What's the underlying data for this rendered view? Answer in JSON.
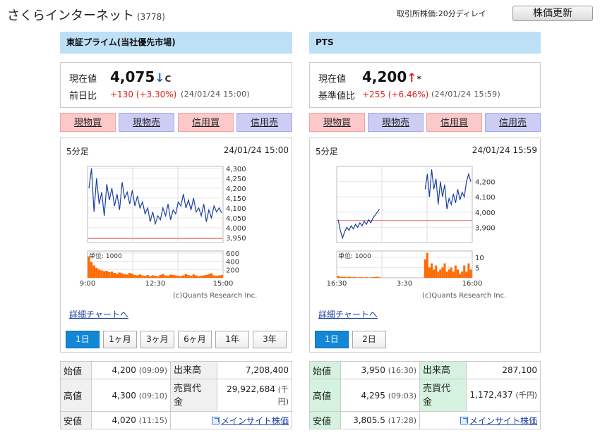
{
  "header": {
    "company_name": "さくらインターネット",
    "code": "(3778)",
    "delay_note": "取引所株価:20分ディレイ",
    "refresh_label": "株価更新"
  },
  "labels": {
    "current": "現在値",
    "prev_change": "前日比",
    "base_change": "基準値比",
    "buy_spot": "現物買",
    "sell_spot": "現物売",
    "buy_margin": "信用買",
    "sell_margin": "信用売",
    "detail_chart": "詳細チャートへ",
    "open": "始値",
    "high": "高値",
    "low": "安値",
    "volume": "出来高",
    "turnover_line1": "売買代",
    "turnover_line2": "金",
    "main_site": "メインサイト株価",
    "unit_thousand_yen": "(千円)"
  },
  "colors": {
    "header_bg": "#bde0f7",
    "up": "#e02020",
    "down_arrow": "#1a5fc8",
    "chart_line": "#1a3f9f",
    "volume": "#ff6a00",
    "base_line": "#ef7070",
    "active_tab": "#1287d8"
  },
  "tse": {
    "market": "東証プライム(当社優先市場)",
    "price": "4,075",
    "arrow": "↓",
    "mark": "C",
    "change": "+130 (+3.30%)",
    "time": "(24/01/24 15:00)",
    "interval": "5分足",
    "chart_datetime": "24/01/24 15:00",
    "tabs": [
      "1日",
      "1ヶ月",
      "3ヶ月",
      "6ヶ月",
      "1年",
      "3年"
    ],
    "open": "4,200",
    "open_time": "(09:09)",
    "high": "4,300",
    "high_time": "(09:10)",
    "low": "4,020",
    "low_time": "(11:15)",
    "volume": "7,208,400",
    "turnover": "29,922,684"
  },
  "pts": {
    "market": "PTS",
    "price": "4,200",
    "arrow": "↑",
    "mark": "*",
    "change": "+255 (+6.46%)",
    "time": "(24/01/24 15:59)",
    "interval": "5分足",
    "chart_datetime": "24/01/24 15:59",
    "tabs": [
      "1日",
      "2日"
    ],
    "open": "3,950",
    "open_time": "(16:30)",
    "high": "4,295",
    "high_time": "(09:03)",
    "low": "3,805.5",
    "low_time": "(17:28)",
    "volume": "287,100",
    "turnover": "1,172,437"
  },
  "chart_data": [
    {
      "type": "line",
      "title": "東証プライム 5分足",
      "x_ticks": [
        "9:00",
        "12:30",
        "15:00"
      ],
      "y_ticks": [
        "3,950",
        "4,000",
        "4,050",
        "4,100",
        "4,150",
        "4,200",
        "4,250",
        "4,300"
      ],
      "ylim": [
        3925,
        4310
      ],
      "base_line": 3945,
      "series": [
        {
          "values": [
            4200,
            4300,
            4080,
            4250,
            4120,
            4180,
            4060,
            4220,
            4140,
            4200,
            4110,
            4170,
            4090,
            4230,
            4150,
            4180,
            4120,
            4190,
            4110,
            4160,
            4100,
            4130,
            4070,
            4100,
            4030,
            4080,
            4020,
            4060,
            4040,
            4100,
            4060,
            4120,
            4040,
            4090,
            4070,
            4130,
            4110,
            4170,
            4100,
            4140,
            4090,
            4150,
            4080,
            4100,
            4060,
            4120,
            4030,
            4090,
            4050,
            4110,
            4080,
            4100,
            4075
          ]
        }
      ],
      "volume_label": "単位: 1000",
      "volume_ticks": [
        "200",
        "400",
        "600"
      ],
      "volume_ylim": [
        0,
        650
      ],
      "volume": [
        520,
        380,
        300,
        240,
        200,
        180,
        160,
        170,
        140,
        150,
        120,
        100,
        130,
        110,
        90,
        80,
        120,
        100,
        70,
        60,
        80,
        60,
        50,
        70,
        40,
        60,
        50,
        40,
        70,
        90,
        60,
        50,
        80,
        70,
        60,
        50,
        40,
        60,
        90,
        70,
        50,
        80,
        60,
        40,
        50,
        60,
        70,
        90,
        110,
        60,
        50,
        60,
        70
      ],
      "credit": "(c)Quants Research Inc."
    },
    {
      "type": "line",
      "title": "PTS 5分足",
      "x_ticks": [
        "16:30",
        "3:30",
        "16:00"
      ],
      "y_ticks": [
        "3,900",
        "4,000",
        "4,100",
        "4,200"
      ],
      "ylim": [
        3800,
        4300
      ],
      "base_line": 3945,
      "series": [
        {
          "values": [
            3950,
            3880,
            3830,
            3870,
            3900,
            3880,
            3910,
            3890,
            3920,
            3900,
            3930,
            3910,
            3940,
            3920,
            3950,
            3930,
            3960,
            3980,
            4000,
            4020,
            null,
            null,
            null,
            null,
            null,
            null,
            null,
            null,
            null,
            null,
            null,
            null,
            null,
            null,
            null,
            null,
            null,
            null,
            null,
            null,
            4150,
            4250,
            4100,
            4280,
            4150,
            4220,
            4050,
            4200,
            4100,
            4180,
            4020,
            4090,
            4050,
            4120,
            4060,
            4150,
            4080,
            4130,
            4100,
            4200,
            4250,
            4200
          ]
        }
      ],
      "volume_label": "単位: 1000",
      "volume_ticks": [
        "5",
        "10"
      ],
      "volume_ylim": [
        0,
        13
      ],
      "volume": [
        1,
        0.5,
        0.5,
        0.5,
        0.3,
        0.5,
        0.3,
        0.4,
        0.3,
        0.2,
        0.3,
        0.3,
        0.2,
        0.3,
        0.2,
        0.2,
        0.3,
        0.4,
        0.5,
        0.3,
        0,
        0,
        0,
        0,
        0,
        0,
        0,
        0,
        0,
        0,
        0,
        0,
        0,
        0,
        0,
        0,
        0,
        0,
        0,
        0,
        9,
        12,
        5,
        7,
        4,
        6,
        3,
        4,
        5,
        7,
        3,
        4,
        5,
        3,
        6,
        4,
        2,
        3,
        6,
        3,
        7,
        4
      ],
      "credit": "(c)Quants Research Inc."
    }
  ]
}
